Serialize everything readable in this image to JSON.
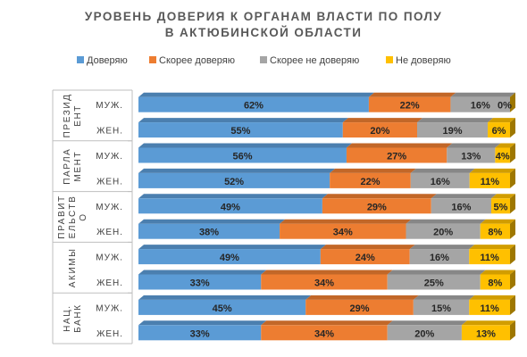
{
  "chart_data": {
    "type": "bar",
    "orientation": "horizontal",
    "stacked": "100%",
    "title": [
      "УРОВЕНЬ ДОВЕРИЯ К ОРГАНАМ ВЛАСТИ ПО ПОЛУ",
      "В АКТЮБИНСКОЙ ОБЛАСТИ"
    ],
    "legend_position": "top",
    "groups": [
      {
        "label": [
          "ПРЕЗИД",
          "ЕНТ"
        ],
        "rows": [
          {
            "category": "МУЖ.",
            "values": [
              62,
              22,
              16,
              0
            ],
            "labels": [
              "62%",
              "22%",
              "16%",
              "0%"
            ]
          },
          {
            "category": "ЖЕН.",
            "values": [
              55,
              20,
              19,
              6
            ],
            "labels": [
              "55%",
              "20%",
              "19%",
              "6%"
            ]
          }
        ]
      },
      {
        "label": [
          "ПАРЛА",
          "МЕНТ"
        ],
        "rows": [
          {
            "category": "МУЖ.",
            "values": [
              56,
              27,
              13,
              4
            ],
            "labels": [
              "56%",
              "27%",
              "13%",
              "4%"
            ]
          },
          {
            "category": "ЖЕН.",
            "values": [
              52,
              22,
              16,
              11
            ],
            "labels": [
              "52%",
              "22%",
              "16%",
              "11%"
            ]
          }
        ]
      },
      {
        "label": [
          "ПРАВИТ",
          "ЕЛЬСТВ",
          "О"
        ],
        "rows": [
          {
            "category": "МУЖ.",
            "values": [
              49,
              29,
              16,
              5
            ],
            "labels": [
              "49%",
              "29%",
              "16%",
              "5%"
            ]
          },
          {
            "category": "ЖЕН.",
            "values": [
              38,
              34,
              20,
              8
            ],
            "labels": [
              "38%",
              "34%",
              "20%",
              "8%"
            ]
          }
        ]
      },
      {
        "label": [
          "АКИМЫ"
        ],
        "rows": [
          {
            "category": "МУЖ.",
            "values": [
              49,
              24,
              16,
              11
            ],
            "labels": [
              "49%",
              "24%",
              "16%",
              "11%"
            ]
          },
          {
            "category": "ЖЕН.",
            "values": [
              33,
              34,
              25,
              8
            ],
            "labels": [
              "33%",
              "34%",
              "25%",
              "8%"
            ]
          }
        ]
      },
      {
        "label": [
          "НАЦ.",
          "БАНК"
        ],
        "rows": [
          {
            "category": "МУЖ.",
            "values": [
              45,
              29,
              15,
              11
            ],
            "labels": [
              "45%",
              "29%",
              "15%",
              "11%"
            ]
          },
          {
            "category": "ЖЕН.",
            "values": [
              33,
              34,
              20,
              13
            ],
            "labels": [
              "33%",
              "34%",
              "20%",
              "13%"
            ]
          }
        ]
      }
    ],
    "series": [
      {
        "name": "Доверяю",
        "color": "#5B9BD5"
      },
      {
        "name": "Скорее  доверяю",
        "color": "#ED7D31"
      },
      {
        "name": "Скорее  не доверяю",
        "color": "#A5A5A5"
      },
      {
        "name": "Не доверяю",
        "color": "#FFC000"
      }
    ]
  }
}
